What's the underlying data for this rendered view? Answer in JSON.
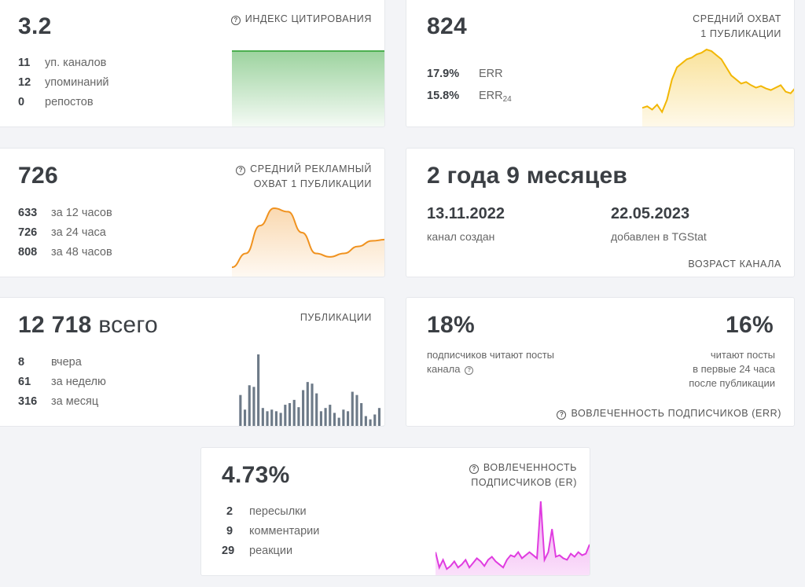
{
  "citation": {
    "value": "3.2",
    "title": "ИНДЕКС ЦИТИРОВАНИЯ",
    "stats": [
      {
        "n": "11",
        "label": "уп. каналов"
      },
      {
        "n": "12",
        "label": "упоминаний"
      },
      {
        "n": "0",
        "label": "репостов"
      }
    ],
    "color": "#4caf50"
  },
  "reach": {
    "value": "824",
    "title_line1": "СРЕДНИЙ ОХВАТ",
    "title_line2": "1 ПУБЛИКАЦИИ",
    "err": {
      "n": "17.9%",
      "label": "ERR"
    },
    "err24": {
      "n": "15.8%",
      "label": "ERR",
      "sub": "24"
    },
    "color": "#f2b705"
  },
  "ad_reach": {
    "value": "726",
    "title_line1": "СРЕДНИЙ РЕКЛАМНЫЙ",
    "title_line2": "ОХВАТ 1 ПУБЛИКАЦИИ",
    "stats": [
      {
        "n": "633",
        "label": "за 12 часов"
      },
      {
        "n": "726",
        "label": "за 24 часа"
      },
      {
        "n": "808",
        "label": "за 48 часов"
      }
    ],
    "color": "#f0921f"
  },
  "age": {
    "value": "2 года 9 месяцев",
    "created_date": "13.11.2022",
    "created_label": "канал создан",
    "added_date": "22.05.2023",
    "added_label": "добавлен в TGStat",
    "title": "ВОЗРАСТ КАНАЛА"
  },
  "posts": {
    "value": "12 718",
    "suffix": "всего",
    "title": "ПУБЛИКАЦИИ",
    "stats": [
      {
        "n": "8",
        "label": "вчера"
      },
      {
        "n": "61",
        "label": "за неделю"
      },
      {
        "n": "316",
        "label": "за месяц"
      }
    ],
    "color": "#6d7a88"
  },
  "err_card": {
    "left_value": "18%",
    "left_line1": "подписчиков читают посты",
    "left_line2": "канала",
    "right_value": "16%",
    "right_line1": "читают посты",
    "right_line2": "в первые 24 часа",
    "right_line3": "после публикации",
    "title": "ВОВЛЕЧЕННОСТЬ ПОДПИСЧИКОВ (ERR)"
  },
  "er": {
    "value": "4.73%",
    "title_line1": "ВОВЛЕЧЕННОСТЬ",
    "title_line2": "ПОДПИСЧИКОВ (ER)",
    "stats": [
      {
        "n": "2",
        "label": "пересылки"
      },
      {
        "n": "9",
        "label": "комментарии"
      },
      {
        "n": "29",
        "label": "реакции"
      }
    ],
    "color": "#e03ce0"
  },
  "chart_data": [
    {
      "type": "area",
      "name": "citation",
      "values": [
        1,
        1,
        1,
        1,
        1,
        1,
        1,
        1,
        1,
        1
      ]
    },
    {
      "type": "area",
      "name": "reach",
      "values": [
        20,
        22,
        18,
        24,
        15,
        30,
        55,
        70,
        75,
        80,
        82,
        86,
        88,
        92,
        90,
        85,
        80,
        70,
        60,
        55,
        50,
        52,
        48,
        45,
        47,
        44,
        42,
        45,
        48,
        40,
        38,
        45
      ]
    },
    {
      "type": "area",
      "name": "ad_reach",
      "values": [
        10,
        30,
        70,
        95,
        90,
        60,
        30,
        25,
        30,
        40,
        48,
        50
      ]
    },
    {
      "type": "bar",
      "name": "posts",
      "values": [
        40,
        22,
        52,
        50,
        90,
        24,
        20,
        22,
        20,
        18,
        28,
        30,
        34,
        25,
        46,
        56,
        54,
        42,
        20,
        24,
        28,
        18,
        12,
        22,
        20,
        44,
        40,
        30,
        14,
        10,
        16,
        24,
        2
      ]
    },
    {
      "type": "area",
      "name": "er",
      "values": [
        30,
        10,
        20,
        8,
        12,
        18,
        10,
        14,
        20,
        10,
        16,
        22,
        18,
        12,
        20,
        24,
        18,
        14,
        10,
        20,
        26,
        24,
        30,
        22,
        26,
        30,
        26,
        22,
        96,
        20,
        30,
        60,
        24,
        26,
        22,
        20,
        28,
        24,
        30,
        26,
        28,
        40
      ]
    }
  ]
}
